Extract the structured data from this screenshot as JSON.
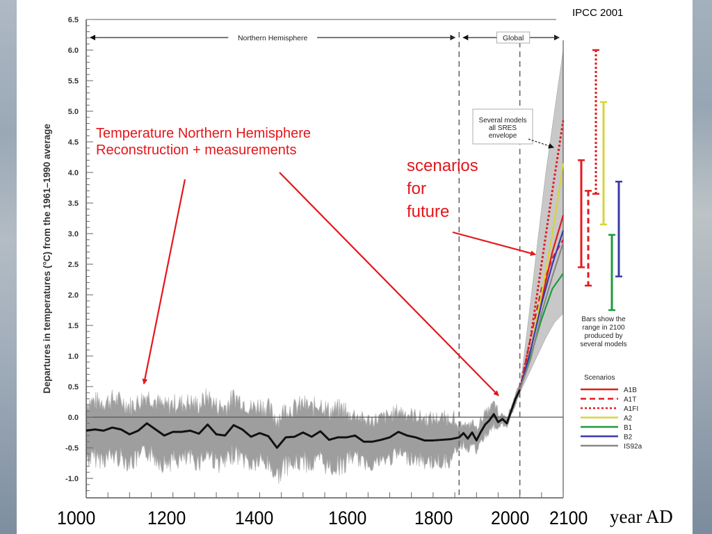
{
  "source": "IPCC 2001",
  "annotations": {
    "nh_line1": "Temperature Northern Hemisphere",
    "nh_line2": "Reconstruction + measurements",
    "future_line1": "scenarios",
    "future_line2": "for",
    "future_line3": "future"
  },
  "x_axis_big_labels": [
    "1000",
    "1200",
    "1400",
    "1600",
    "1800",
    "2000",
    "2100"
  ],
  "x_axis_title": "year AD",
  "colors": {
    "annotation": "#e3161b",
    "A1B": "#e31a1c",
    "A1T": "#e31a1c",
    "A1FI": "#e31a1c",
    "A2": "#d8d43a",
    "B1": "#1f9a3c",
    "B2": "#3a3aa8",
    "IS92a": "#888888",
    "envelope": "#c8c8c8",
    "proxy_band": "#9e9e9e"
  },
  "chart_data": {
    "type": "line",
    "title": "",
    "ylabel": "Departures in temperatures (°C) from the 1961–1990 average",
    "xlabel": "year AD",
    "xlim": [
      1000,
      2100
    ],
    "ylim": [
      -1.25,
      6.5
    ],
    "yticks": [
      "6.5",
      "6.0",
      "5.5",
      "5.0",
      "4.5",
      "4.0",
      "3.5",
      "3.0",
      "2.5",
      "2.0",
      "1.5",
      "1.0",
      "0.5",
      "0.0",
      "-0.5",
      "-1.0"
    ],
    "ytick_values": [
      6.5,
      6.0,
      5.5,
      5.0,
      4.5,
      4.0,
      3.5,
      3.0,
      2.5,
      2.0,
      1.5,
      1.0,
      0.5,
      0.0,
      -0.5,
      -1.0
    ],
    "xticks_minor_step": 50,
    "reference_lines": [
      {
        "type": "horizontal",
        "y": 0.0
      },
      {
        "type": "vertical-dashed",
        "x": 1860
      },
      {
        "type": "vertical-dashed",
        "x": 2000
      }
    ],
    "regions": [
      {
        "label": "Northern Hemisphere",
        "from": 1000,
        "to": 1860
      },
      {
        "label": "Global",
        "from": 1860,
        "to": 2100
      }
    ],
    "smoothed_series": {
      "name": "Northern Hemisphere reconstruction (smoothed)",
      "x": [
        1000,
        1020,
        1040,
        1060,
        1080,
        1100,
        1120,
        1140,
        1160,
        1180,
        1200,
        1220,
        1240,
        1260,
        1280,
        1300,
        1320,
        1340,
        1360,
        1380,
        1400,
        1420,
        1440,
        1460,
        1480,
        1500,
        1520,
        1540,
        1560,
        1580,
        1600,
        1620,
        1640,
        1660,
        1680,
        1700,
        1720,
        1740,
        1760,
        1780,
        1800,
        1820,
        1840,
        1860,
        1870,
        1880,
        1890,
        1900,
        1910,
        1920,
        1930,
        1940,
        1950,
        1960,
        1970,
        1980,
        1990,
        2000
      ],
      "y": [
        -0.22,
        -0.2,
        -0.22,
        -0.17,
        -0.2,
        -0.28,
        -0.22,
        -0.1,
        -0.2,
        -0.3,
        -0.24,
        -0.24,
        -0.22,
        -0.27,
        -0.12,
        -0.28,
        -0.3,
        -0.13,
        -0.2,
        -0.32,
        -0.26,
        -0.31,
        -0.5,
        -0.33,
        -0.32,
        -0.25,
        -0.32,
        -0.23,
        -0.37,
        -0.33,
        -0.33,
        -0.3,
        -0.4,
        -0.4,
        -0.37,
        -0.33,
        -0.24,
        -0.3,
        -0.33,
        -0.38,
        -0.38,
        -0.37,
        -0.36,
        -0.33,
        -0.26,
        -0.35,
        -0.25,
        -0.38,
        -0.24,
        -0.12,
        -0.05,
        0.05,
        -0.08,
        -0.03,
        -0.1,
        0.1,
        0.3,
        0.45
      ]
    },
    "proxy_band": {
      "name": "Reconstruction uncertainty / annual values",
      "upper_approx": 0.45,
      "lower_approx": -0.9
    },
    "envelope": {
      "name": "Several models all SRES envelope",
      "x": [
        2000,
        2020,
        2040,
        2060,
        2080,
        2100
      ],
      "upper": [
        0.45,
        1.6,
        2.8,
        4.0,
        5.0,
        6.0
      ],
      "lower": [
        0.4,
        0.7,
        1.0,
        1.3,
        1.55,
        1.7
      ]
    },
    "series": [
      {
        "name": "A1B",
        "style": "solid",
        "x": [
          2000,
          2025,
          2050,
          2075,
          2100
        ],
        "y": [
          0.45,
          1.1,
          1.9,
          2.7,
          3.3
        ]
      },
      {
        "name": "A1T",
        "style": "dashed",
        "x": [
          2000,
          2025,
          2050,
          2075,
          2100
        ],
        "y": [
          0.45,
          1.3,
          2.1,
          2.6,
          2.9
        ]
      },
      {
        "name": "A1FI",
        "style": "dotted",
        "x": [
          2000,
          2025,
          2050,
          2075,
          2100
        ],
        "y": [
          0.45,
          1.3,
          2.5,
          3.7,
          4.85
        ]
      },
      {
        "name": "A2",
        "style": "solid",
        "x": [
          2000,
          2025,
          2050,
          2075,
          2100
        ],
        "y": [
          0.45,
          1.1,
          2.0,
          3.0,
          4.15
        ]
      },
      {
        "name": "B1",
        "style": "solid",
        "x": [
          2000,
          2025,
          2050,
          2075,
          2100
        ],
        "y": [
          0.45,
          1.0,
          1.6,
          2.1,
          2.35
        ]
      },
      {
        "name": "B2",
        "style": "solid",
        "x": [
          2000,
          2025,
          2050,
          2075,
          2100
        ],
        "y": [
          0.45,
          1.1,
          1.85,
          2.5,
          3.05
        ]
      },
      {
        "name": "IS92a",
        "style": "solid",
        "x": [
          2000,
          2025,
          2050,
          2075,
          2100
        ],
        "y": [
          0.45,
          0.95,
          1.7,
          2.3,
          2.85
        ]
      }
    ],
    "range_bars_2100": [
      {
        "name": "A1B",
        "style": "solid",
        "low": 2.45,
        "high": 4.2
      },
      {
        "name": "A1T",
        "style": "dashed",
        "low": 2.15,
        "high": 3.7
      },
      {
        "name": "A1FI",
        "style": "dotted",
        "low": 3.65,
        "high": 6.0
      },
      {
        "name": "A2",
        "style": "solid",
        "low": 3.15,
        "high": 5.15
      },
      {
        "name": "B1",
        "style": "solid",
        "low": 1.75,
        "high": 2.98
      },
      {
        "name": "B2",
        "style": "solid",
        "low": 2.3,
        "high": 3.85
      }
    ],
    "envelope_label": [
      "Several models",
      "all SRES",
      "envelope"
    ],
    "bars_note": [
      "Bars show the",
      "range in 2100",
      "produced by",
      "several models"
    ],
    "legend_title": "Scenarios",
    "legend": [
      "A1B",
      "A1T",
      "A1FI",
      "A2",
      "B1",
      "B2",
      "IS92a"
    ],
    "legend_position": "right"
  }
}
